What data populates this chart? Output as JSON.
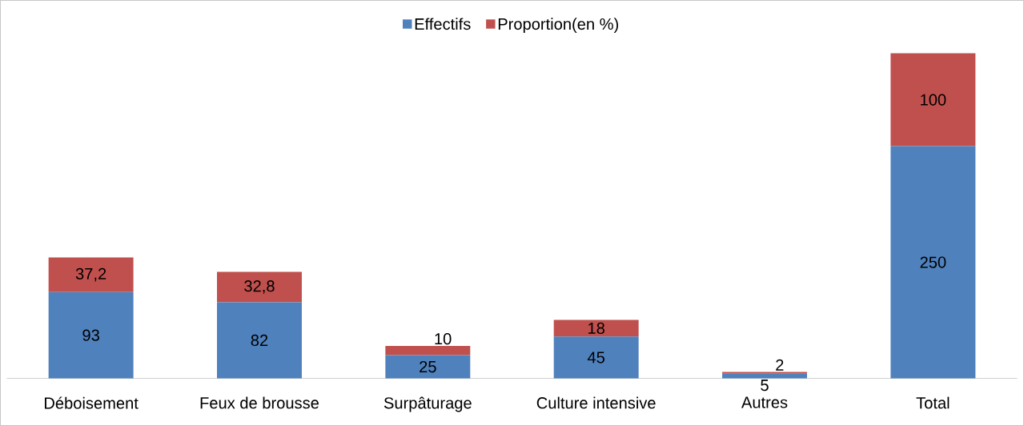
{
  "chart_data": {
    "type": "bar",
    "stacked": true,
    "legend": "top",
    "categories": [
      "Déboisement",
      "Feux de brousse",
      "Surpâturage",
      "Culture intensive",
      "Autres",
      "Total"
    ],
    "series": [
      {
        "name": "Effectifs",
        "color": "#4f81bd",
        "values": [
          93,
          82,
          25,
          45,
          5,
          250
        ],
        "value_labels": [
          "93",
          "82",
          "25",
          "45",
          "5",
          "250"
        ]
      },
      {
        "name": "Proportion(en %)",
        "color": "#c0504d",
        "values": [
          37.2,
          32.8,
          10,
          18,
          2,
          100
        ],
        "value_labels": [
          "37,2",
          "32,8",
          "10",
          "18",
          "2",
          "100"
        ]
      }
    ]
  }
}
